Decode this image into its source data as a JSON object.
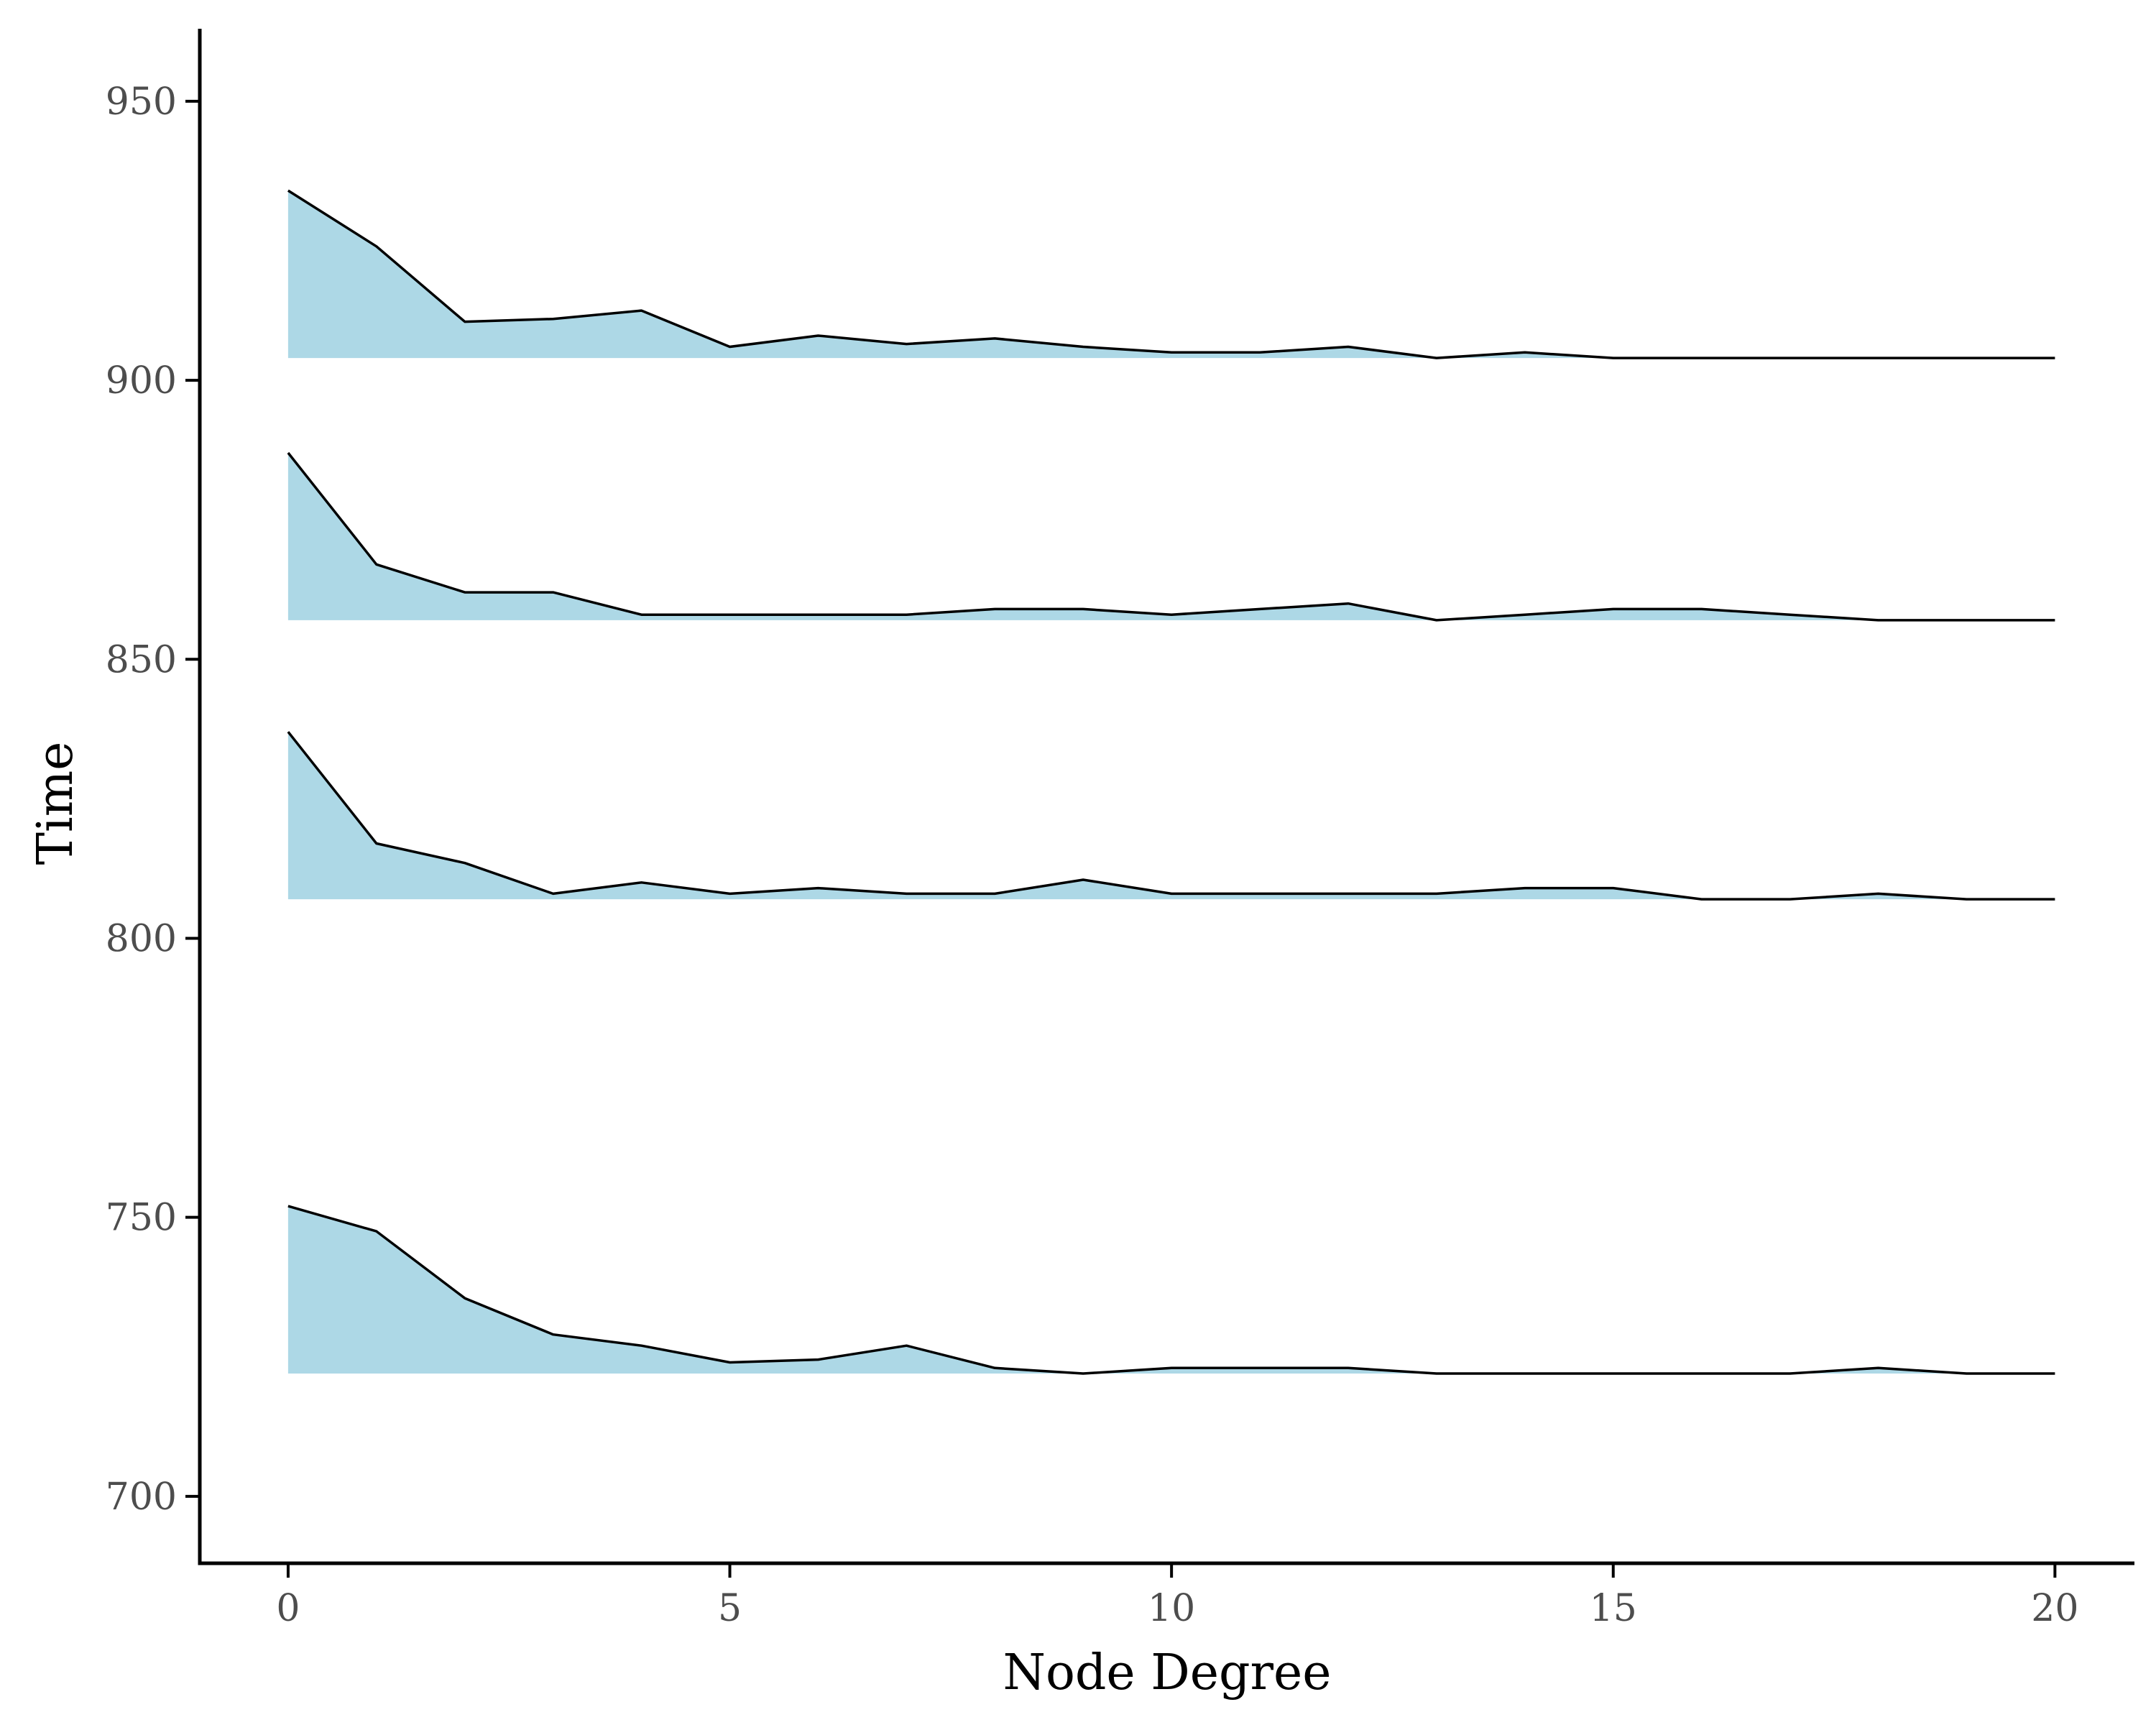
{
  "chart_data": {
    "type": "area",
    "title": "",
    "xlabel": "Node Degree",
    "ylabel": "Time",
    "xlim": [
      -1,
      20.9
    ],
    "ylim": [
      688,
      963
    ],
    "x_ticks": [
      0,
      5,
      10,
      15,
      20
    ],
    "y_ticks": [
      700,
      750,
      800,
      850,
      900,
      950
    ],
    "grid": false,
    "legend": "none",
    "fill_color": "#add8e6",
    "line_color": "#000000",
    "x": [
      0,
      1,
      2,
      3,
      4,
      5,
      6,
      7,
      8,
      9,
      10,
      11,
      12,
      13,
      14,
      15,
      16,
      17,
      18,
      19,
      20
    ],
    "series": [
      {
        "baseline": 904,
        "values": [
          934,
          924,
          910.5,
          911,
          912.5,
          906,
          908,
          906.5,
          907.5,
          906,
          905,
          905,
          906,
          904,
          905,
          904,
          904,
          904,
          904,
          904,
          904
        ]
      },
      {
        "baseline": 857,
        "values": [
          887,
          867,
          862,
          862,
          858,
          858,
          858,
          858,
          859,
          859,
          858,
          859,
          860,
          857,
          858,
          859,
          859,
          858,
          857,
          857,
          857
        ]
      },
      {
        "baseline": 807,
        "values": [
          837,
          817,
          813.5,
          808,
          810,
          808,
          809,
          808,
          808,
          810.5,
          808,
          808,
          808,
          808,
          809,
          809,
          807,
          807,
          808,
          807,
          807
        ]
      },
      {
        "baseline": 722,
        "values": [
          752,
          747.5,
          735.5,
          729,
          727,
          724,
          724.5,
          727,
          723,
          722,
          723,
          723,
          723,
          722,
          722,
          722,
          722,
          722,
          723,
          722,
          722
        ]
      }
    ]
  }
}
